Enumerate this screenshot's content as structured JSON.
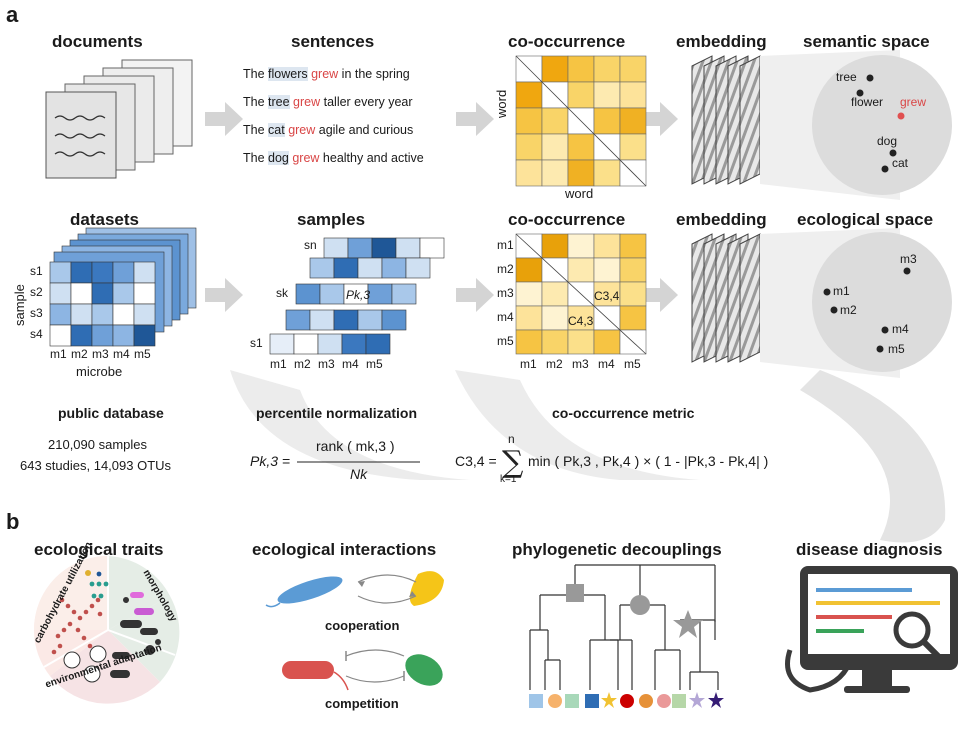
{
  "panel_a": {
    "label": "a",
    "row1": {
      "documents_title": "documents",
      "sentences_title": "sentences",
      "cooc_title": "co-occurrence",
      "embedding_title": "embedding",
      "space_title": "semantic space",
      "sentences": [
        {
          "pre": "The ",
          "subj": "flowers",
          "verb": "grew",
          "post": " in the spring"
        },
        {
          "pre": "The ",
          "subj": "tree",
          "verb": "grew",
          "post": " taller every year"
        },
        {
          "pre": "The ",
          "subj": "cat",
          "verb": "grew",
          "post": " agile and curious"
        },
        {
          "pre": "The ",
          "subj": "dog",
          "verb": "grew",
          "post": " healthy and active"
        }
      ],
      "cooc_ylabel": "word",
      "cooc_xlabel": "word",
      "space_points": [
        "tree",
        "flower",
        "grew",
        "dog",
        "cat"
      ]
    },
    "row2": {
      "datasets_title": "datasets",
      "samples_title": "samples",
      "cooc_title": "co-occurrence",
      "embedding_title": "embedding",
      "space_title": "ecological space",
      "sample_axis": "sample",
      "microbe_axis": "microbe",
      "s_labels": [
        "s1",
        "s2",
        "s3",
        "s4"
      ],
      "m_labels": [
        "m1",
        "m2",
        "m3",
        "m4",
        "m5"
      ],
      "samples_labels": {
        "sn": "sn",
        "sk": "sk",
        "s1": "s1",
        "pk3": "Pk,3"
      },
      "cooc_cells": {
        "c34": "C3,4",
        "c43": "C4,3"
      },
      "space_points": [
        "m3",
        "m1",
        "m2",
        "m4",
        "m5"
      ]
    },
    "public_database": {
      "title": "public database",
      "line1": "210,090 samples",
      "line2": "643 studies, 14,093 OTUs"
    },
    "percentile": {
      "title": "percentile normalization",
      "lhs": "Pk,3 =",
      "numerator": "rank ( mk,3 )",
      "denominator": "Nk"
    },
    "metric": {
      "title": "co-occurrence metric",
      "lhs": "C3,4 =",
      "sum_top": "n",
      "sum_bottom": "k=1",
      "body": "min ( Pk,3 , Pk,4 ) × ( 1 - |Pk,3 - Pk,4| )"
    }
  },
  "panel_b": {
    "label": "b",
    "ecological_traits": {
      "title": "ecological traits",
      "carb": "carbohydrate utilization",
      "morph": "morphology",
      "env": "environmental adaptation"
    },
    "interactions": {
      "title": "ecological interactions",
      "cooperation": "cooperation",
      "competition": "competition"
    },
    "phylo": {
      "title": "phylogenetic decouplings"
    },
    "disease": {
      "title": "disease diagnosis"
    }
  },
  "colors": {
    "orange_dark": "#e8a10a",
    "orange_mid": "#f6c443",
    "yellow_light": "#fde9a4",
    "blue_dark": "#2f6db4",
    "blue_mid": "#6fa0d8",
    "blue_light": "#cfe0f2",
    "red_text": "#d94545",
    "grey_arrow": "#d4d4d4"
  }
}
